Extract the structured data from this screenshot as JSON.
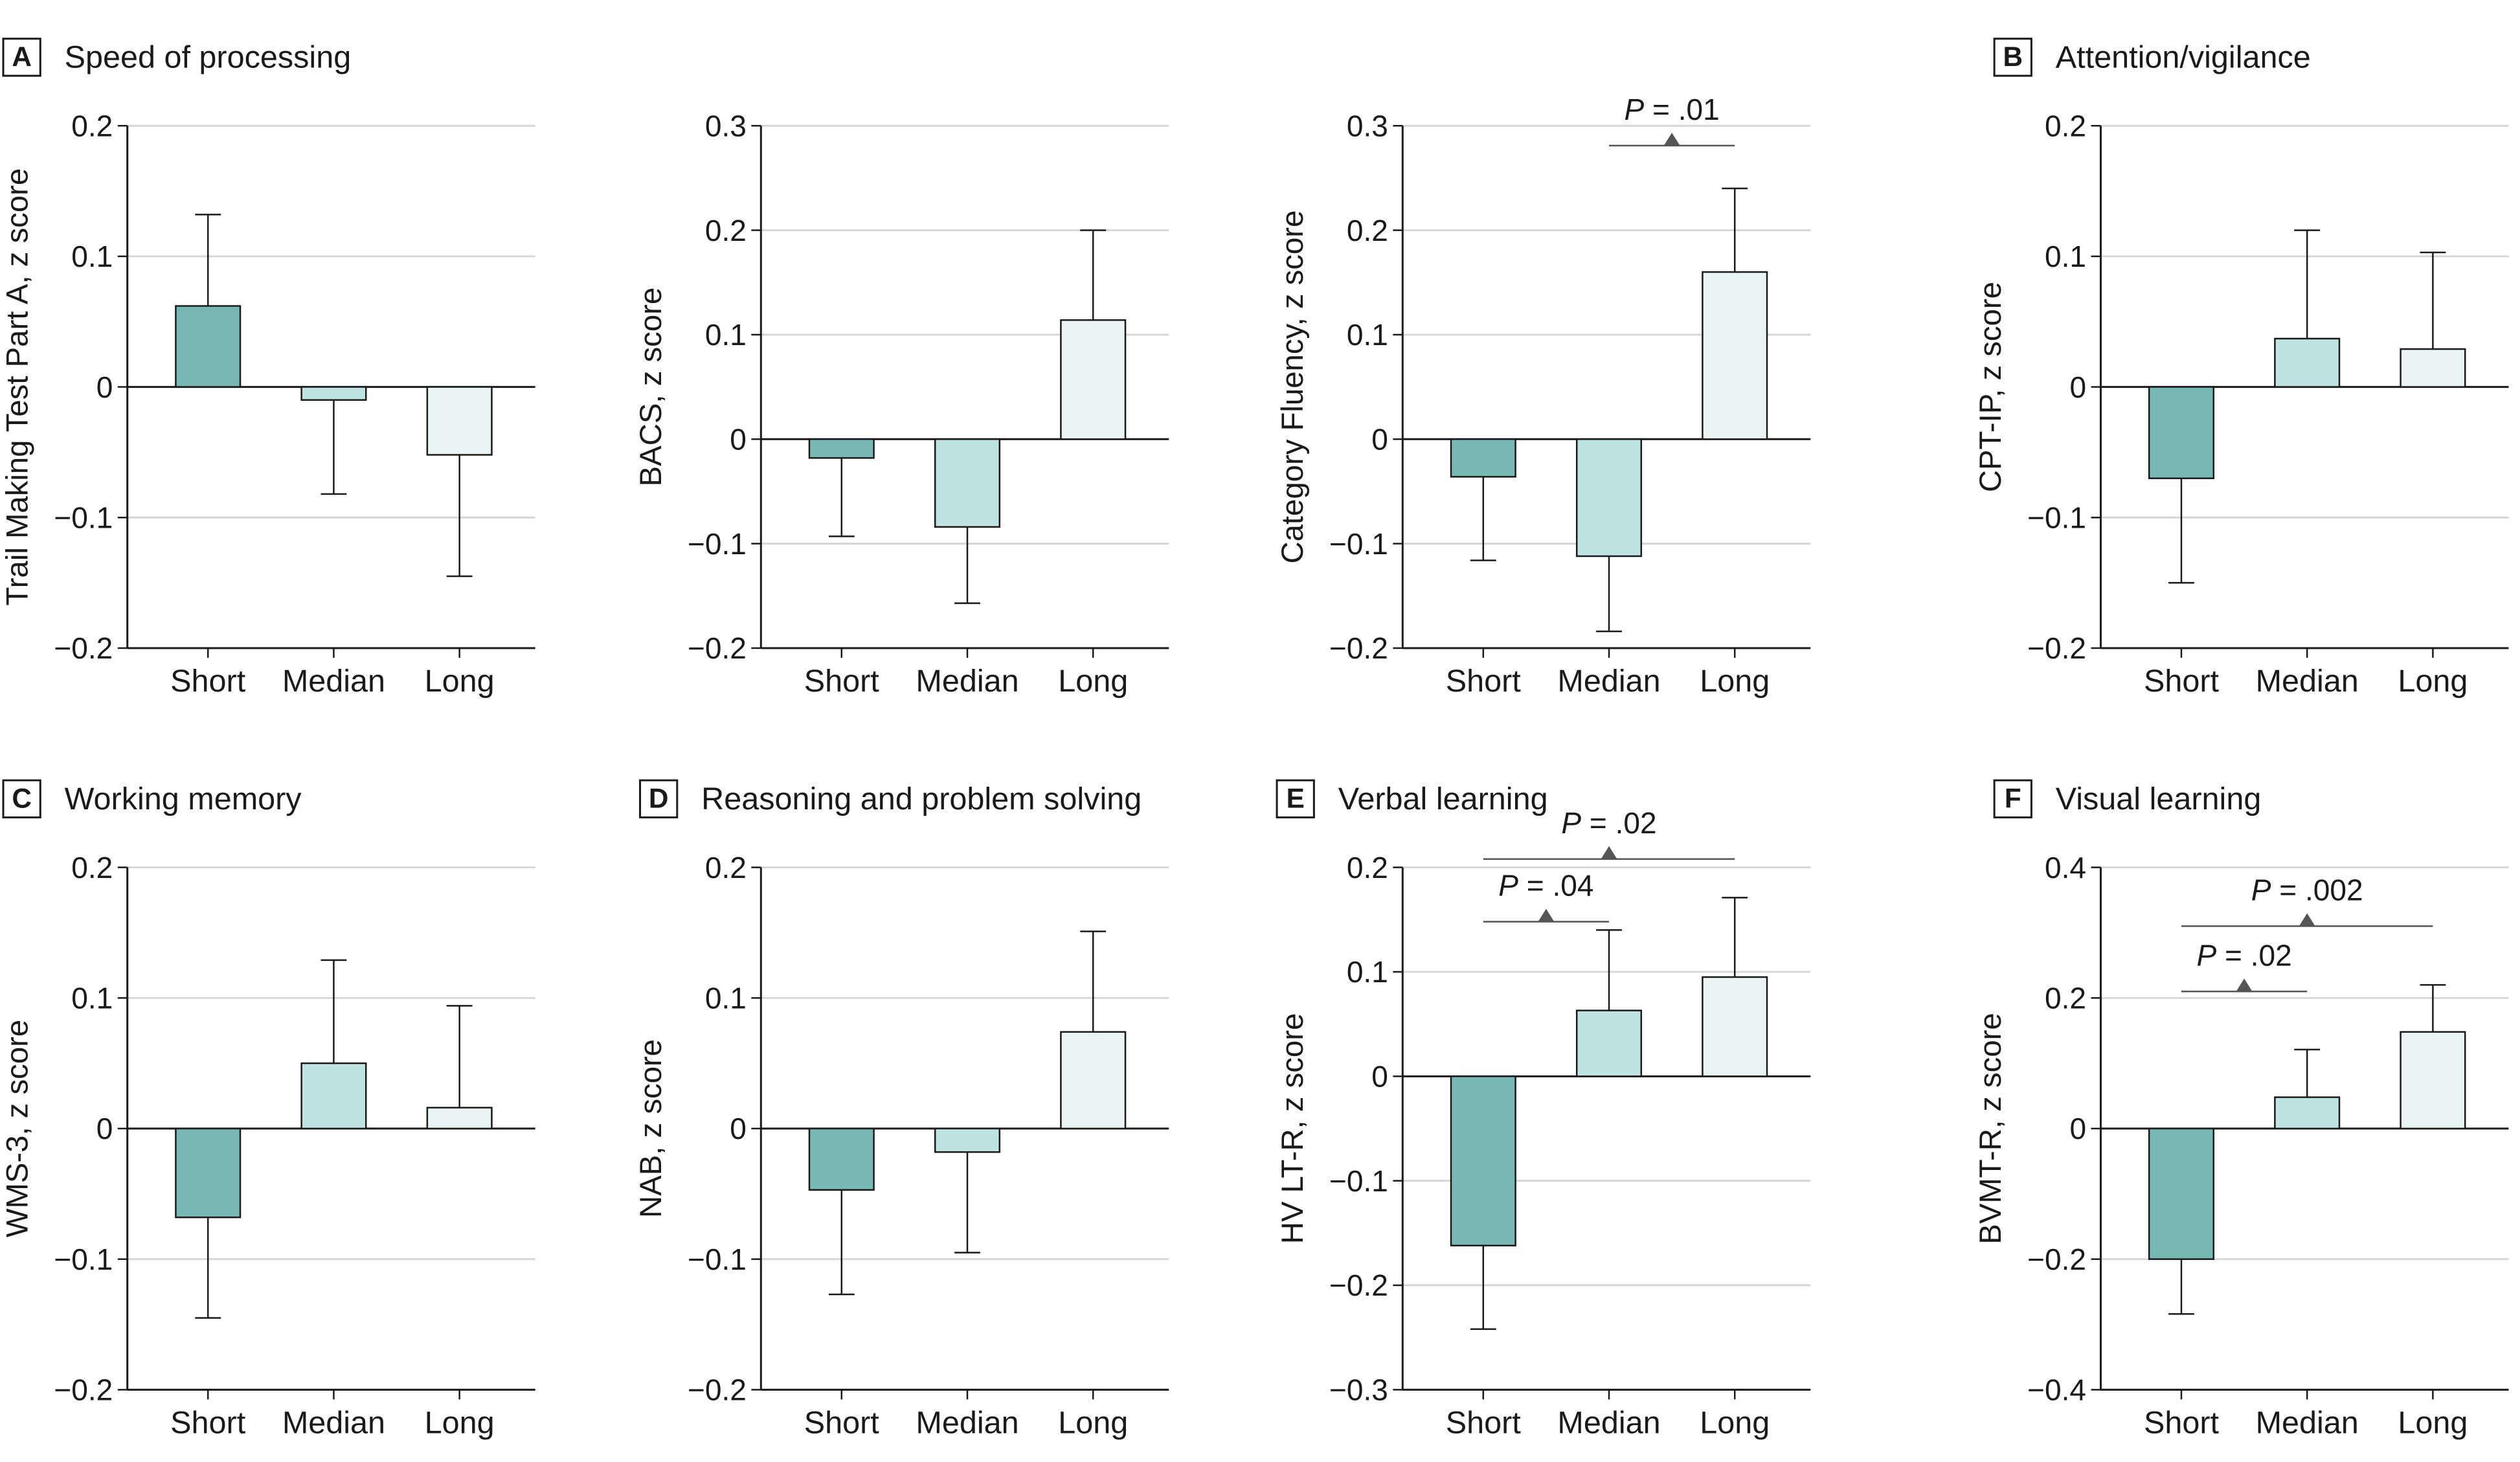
{
  "colors": {
    "short": "#78b8b4",
    "median": "#bfe3e0",
    "long": "#e9f3f3",
    "bar_stroke": "#1a1a1a",
    "grid": "#d6d6d6",
    "axis": "#1a1a1a",
    "text": "#1a1a1a",
    "marker": "#555555"
  },
  "chart_data": [
    {
      "type": "bar",
      "section_letter": "A",
      "section_title": "Speed of processing",
      "ylabel": "Trail Making Test Part A, z score",
      "categories": [
        "Short",
        "Median",
        "Long"
      ],
      "values": [
        0.062,
        -0.01,
        -0.052
      ],
      "error_bars": [
        0.132,
        -0.082,
        -0.145
      ],
      "ylim": [
        -0.2,
        0.2
      ],
      "yticks": [
        -0.2,
        -0.1,
        0,
        0.1,
        0.2
      ],
      "ytick_labels": [
        "−0.2",
        "−0.1",
        "0",
        "0.1",
        "0.2"
      ],
      "grid": true,
      "annotations": []
    },
    {
      "type": "bar",
      "section_letter": "",
      "section_title": "",
      "ylabel": "BACS, z score",
      "categories": [
        "Short",
        "Median",
        "Long"
      ],
      "values": [
        -0.018,
        -0.084,
        0.114
      ],
      "error_bars": [
        -0.093,
        -0.157,
        0.2
      ],
      "ylim": [
        -0.2,
        0.3
      ],
      "yticks": [
        -0.2,
        -0.1,
        0,
        0.1,
        0.2,
        0.3
      ],
      "ytick_labels": [
        "−0.2",
        "−0.1",
        "0",
        "0.1",
        "0.2",
        "0.3"
      ],
      "grid": true,
      "annotations": []
    },
    {
      "type": "bar",
      "section_letter": "",
      "section_title": "",
      "ylabel": "Category Fluency, z score",
      "categories": [
        "Short",
        "Median",
        "Long"
      ],
      "values": [
        -0.036,
        -0.112,
        0.16
      ],
      "error_bars": [
        -0.116,
        -0.184,
        0.24
      ],
      "ylim": [
        -0.2,
        0.3
      ],
      "yticks": [
        -0.2,
        -0.1,
        0,
        0.1,
        0.2,
        0.3
      ],
      "ytick_labels": [
        "−0.2",
        "−0.1",
        "0",
        "0.1",
        "0.2",
        "0.3"
      ],
      "grid": true,
      "annotations": [
        {
          "p_label": "P",
          "p_value": " = .01",
          "from": 1,
          "to": 2,
          "y": 0.281
        }
      ]
    },
    {
      "type": "bar",
      "section_letter": "B",
      "section_title": "Attention/vigilance",
      "ylabel": "CPT-IP, z score",
      "categories": [
        "Short",
        "Median",
        "Long"
      ],
      "values": [
        -0.07,
        0.037,
        0.029
      ],
      "error_bars": [
        -0.15,
        0.12,
        0.103
      ],
      "ylim": [
        -0.2,
        0.2
      ],
      "yticks": [
        -0.2,
        -0.1,
        0,
        0.1,
        0.2
      ],
      "ytick_labels": [
        "−0.2",
        "−0.1",
        "0",
        "0.1",
        "0.2"
      ],
      "grid": true,
      "annotations": []
    },
    {
      "type": "bar",
      "section_letter": "C",
      "section_title": "Working memory",
      "ylabel": "WMS-3, z score",
      "categories": [
        "Short",
        "Median",
        "Long"
      ],
      "values": [
        -0.068,
        0.05,
        0.016
      ],
      "error_bars": [
        -0.145,
        0.129,
        0.094
      ],
      "ylim": [
        -0.2,
        0.2
      ],
      "yticks": [
        -0.2,
        -0.1,
        0,
        0.1,
        0.2
      ],
      "ytick_labels": [
        "−0.2",
        "−0.1",
        "0",
        "0.1",
        "0.2"
      ],
      "grid": true,
      "annotations": []
    },
    {
      "type": "bar",
      "section_letter": "D",
      "section_title": "Reasoning and problem solving",
      "ylabel": "NAB, z score",
      "categories": [
        "Short",
        "Median",
        "Long"
      ],
      "values": [
        -0.047,
        -0.018,
        0.074
      ],
      "error_bars": [
        -0.127,
        -0.095,
        0.151
      ],
      "ylim": [
        -0.2,
        0.2
      ],
      "yticks": [
        -0.2,
        -0.1,
        0,
        0.1,
        0.2
      ],
      "ytick_labels": [
        "−0.2",
        "−0.1",
        "0",
        "0.1",
        "0.2"
      ],
      "grid": true,
      "annotations": []
    },
    {
      "type": "bar",
      "section_letter": "E",
      "section_title": "Verbal learning",
      "ylabel": "HV LT-R, z score",
      "categories": [
        "Short",
        "Median",
        "Long"
      ],
      "values": [
        -0.162,
        0.063,
        0.095
      ],
      "error_bars": [
        -0.242,
        0.14,
        0.171
      ],
      "ylim": [
        -0.3,
        0.2
      ],
      "yticks": [
        -0.3,
        -0.2,
        -0.1,
        0,
        0.1,
        0.2
      ],
      "ytick_labels": [
        "−0.3",
        "−0.2",
        "−0.1",
        "0",
        "0.1",
        "0.2"
      ],
      "grid": true,
      "annotations": [
        {
          "p_label": "P",
          "p_value": " = .04",
          "from": 0,
          "to": 1,
          "y": 0.148
        },
        {
          "p_label": "P",
          "p_value": " = .02",
          "from": 0,
          "to": 2,
          "y": 0.208
        }
      ]
    },
    {
      "type": "bar",
      "section_letter": "F",
      "section_title": "Visual learning",
      "ylabel": "BVMT-R, z score",
      "categories": [
        "Short",
        "Median",
        "Long"
      ],
      "values": [
        -0.2,
        0.048,
        0.148
      ],
      "error_bars": [
        -0.284,
        0.121,
        0.22
      ],
      "ylim": [
        -0.4,
        0.4
      ],
      "yticks": [
        -0.4,
        -0.2,
        0,
        0.2,
        0.4
      ],
      "ytick_labels": [
        "−0.4",
        "−0.2",
        "0",
        "0.2",
        "0.4"
      ],
      "grid": true,
      "annotations": [
        {
          "p_label": "P",
          "p_value": " = .02",
          "from": 0,
          "to": 1,
          "y": 0.21
        },
        {
          "p_label": "P",
          "p_value": " = .002",
          "from": 0,
          "to": 2,
          "y": 0.31
        }
      ]
    }
  ]
}
